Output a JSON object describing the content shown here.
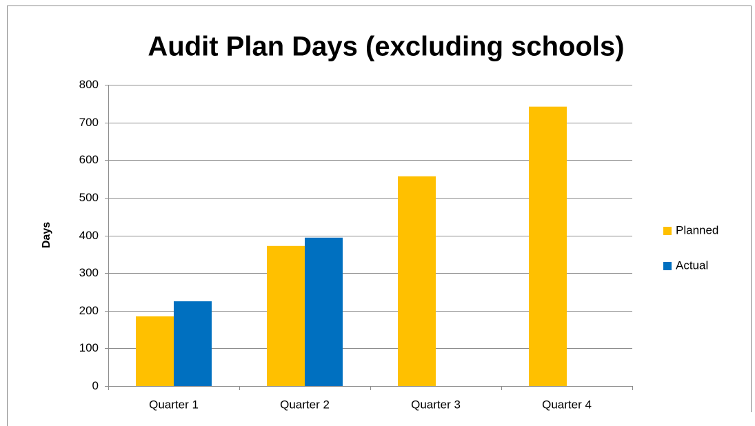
{
  "chart_data": {
    "type": "bar",
    "title": "Audit Plan Days (excluding schools)",
    "y_label": "Days",
    "categories": [
      "Quarter 1",
      "Quarter 2",
      "Quarter 3",
      "Quarter 4"
    ],
    "series": [
      {
        "name": "Planned",
        "color": "#ffc000",
        "values": [
          185,
          372,
          557,
          742
        ]
      },
      {
        "name": "Actual",
        "color": "#0070c0",
        "values": [
          225,
          394,
          null,
          null
        ]
      }
    ],
    "ylim": [
      0,
      800
    ],
    "yticks": [
      0,
      100,
      200,
      300,
      400,
      500,
      600,
      700,
      800
    ],
    "grid": true,
    "legend": "right"
  }
}
